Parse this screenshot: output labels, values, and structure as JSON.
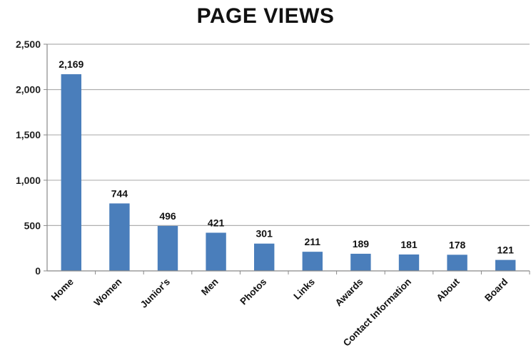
{
  "chart_data": {
    "type": "bar",
    "title": "PAGE VIEWS",
    "categories": [
      "Home",
      "Women",
      "Junior's",
      "Men",
      "Photos",
      "Links",
      "Awards",
      "Contact Information",
      "About",
      "Board"
    ],
    "values": [
      2169,
      744,
      496,
      421,
      301,
      211,
      189,
      181,
      178,
      121
    ],
    "value_labels": [
      "2,169",
      "744",
      "496",
      "421",
      "301",
      "211",
      "189",
      "181",
      "178",
      "121"
    ],
    "yticks": [
      "0",
      "500",
      "1,000",
      "1,500",
      "2,000",
      "2,500"
    ],
    "ylim": [
      0,
      2500
    ],
    "grid": true,
    "bar_color": "#4a7ebb",
    "grid_color": "#b0b0b0"
  }
}
